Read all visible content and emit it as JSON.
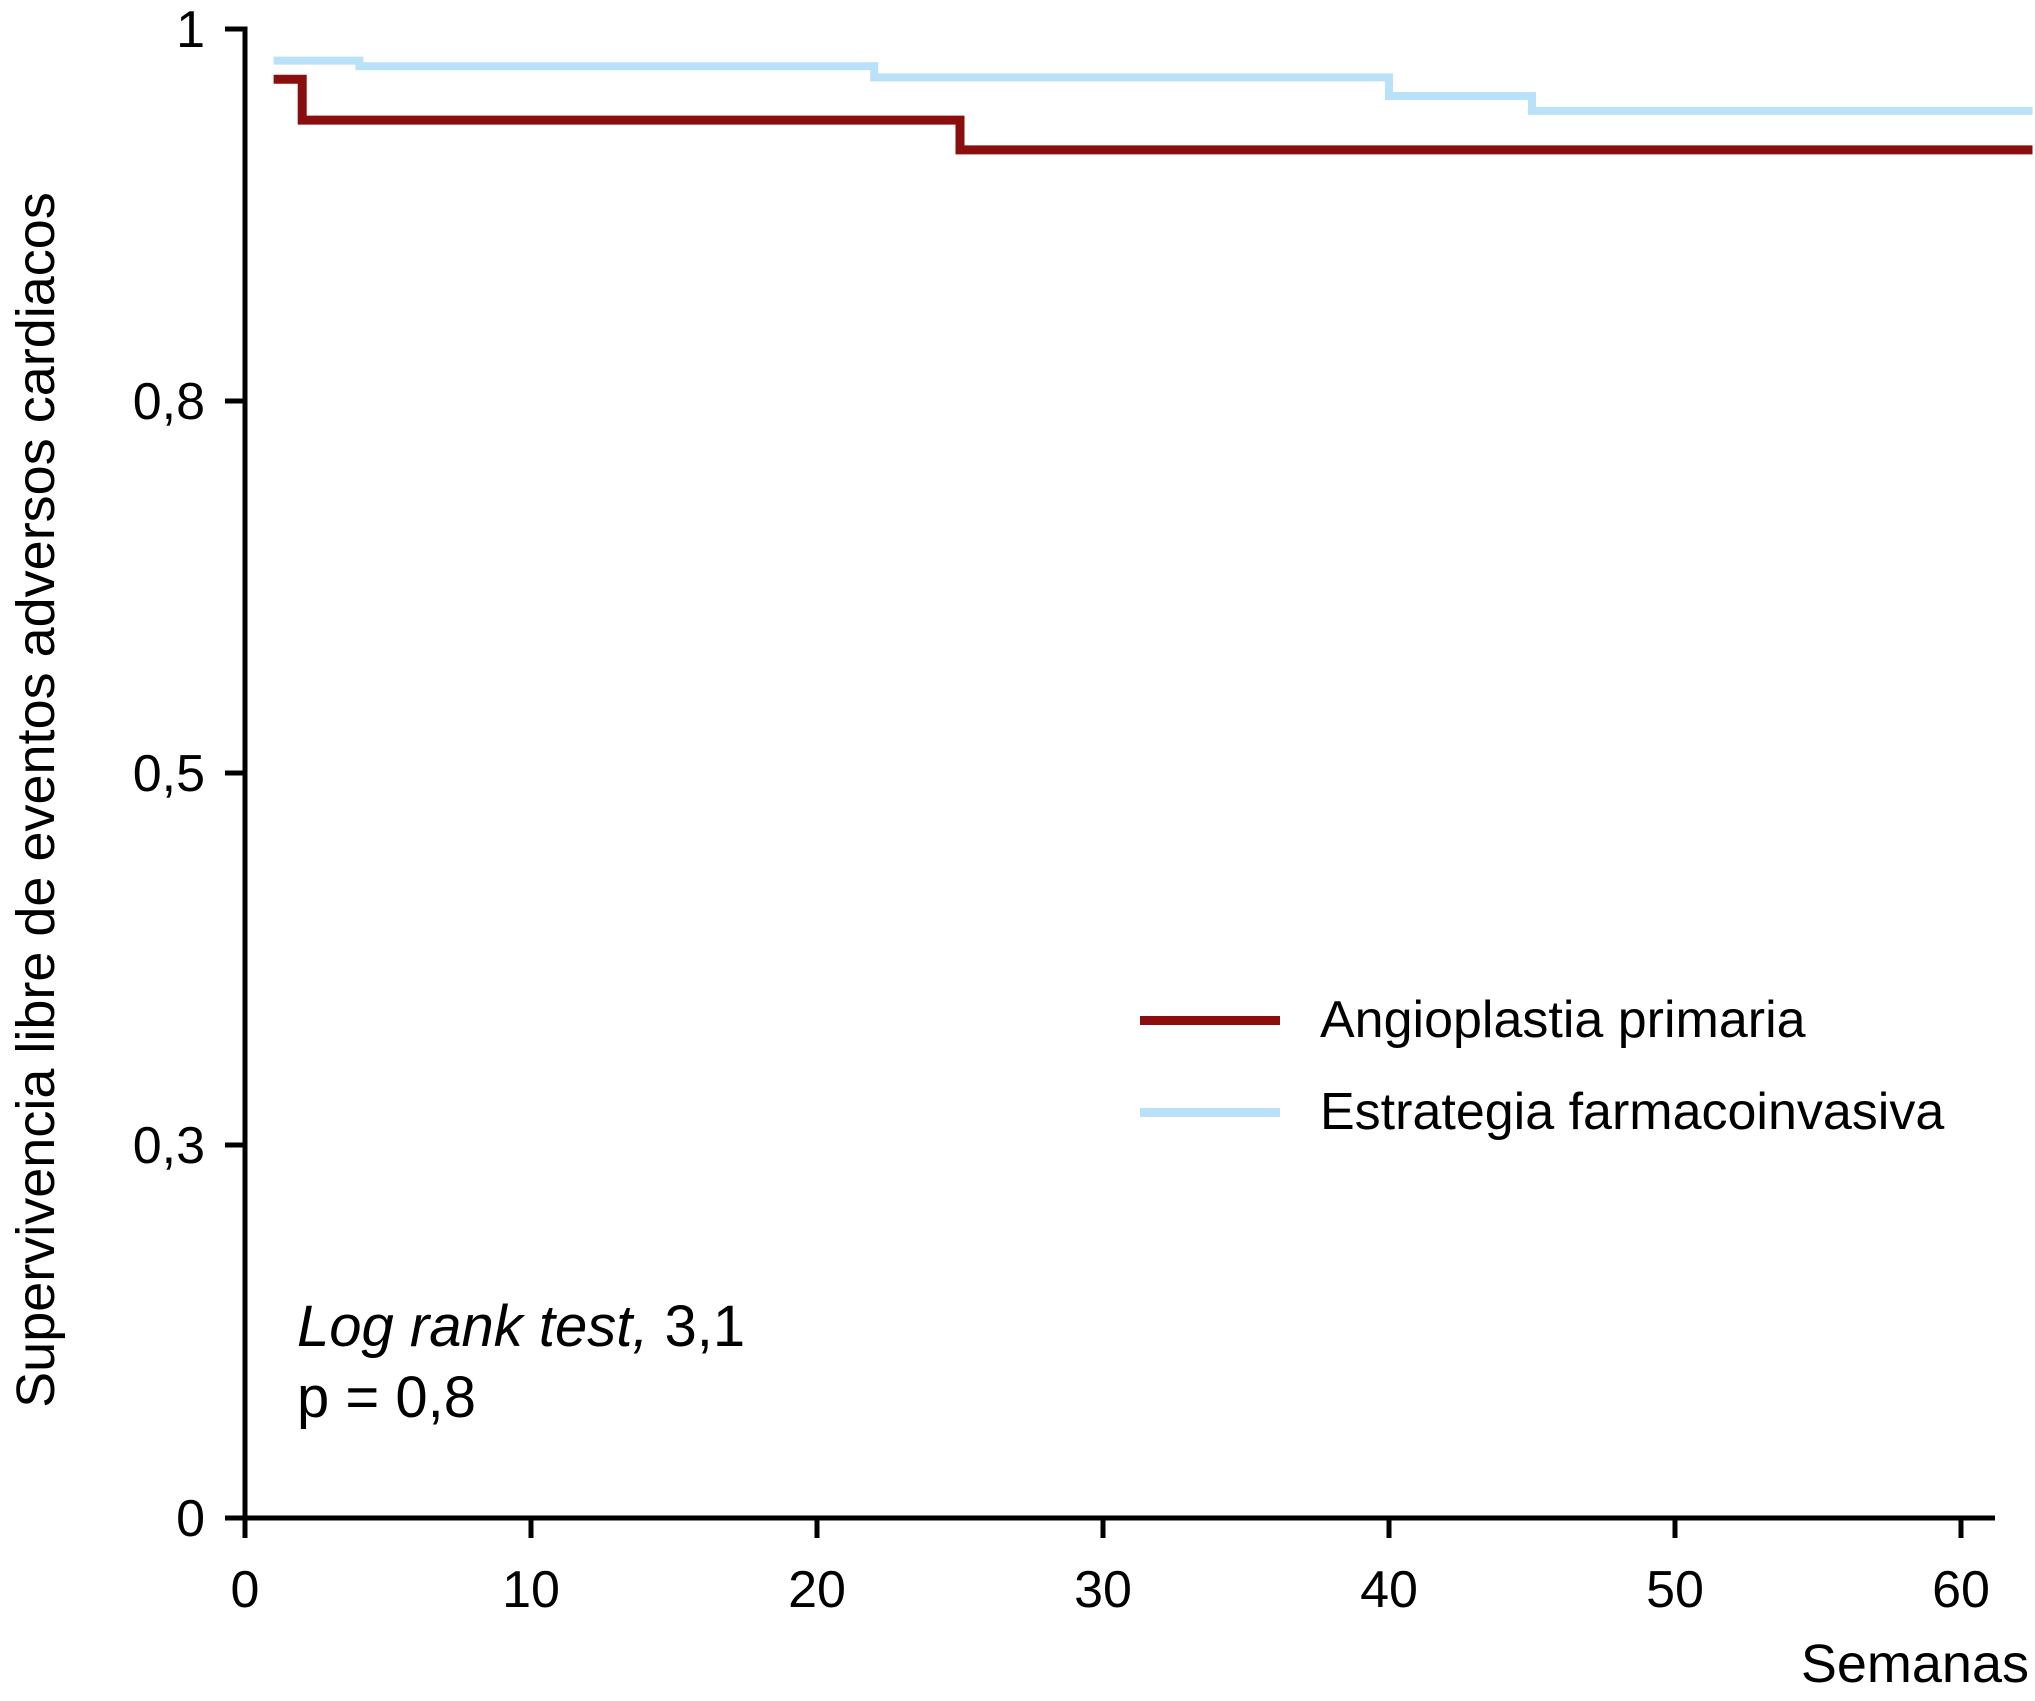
{
  "figure": {
    "background": "#ffffff",
    "axis_color": "#000000",
    "y_axis": {
      "title": "Supervivencia libre de eventos adversos cardiacos",
      "tick_labels": [
        "1",
        "0,8",
        "0,5",
        "0,3",
        "0"
      ],
      "tick_values": [
        1,
        0.8,
        0.5,
        0.3,
        0
      ]
    },
    "x_axis": {
      "title": "Semanas",
      "tick_labels": [
        "0",
        "10",
        "20",
        "30",
        "40",
        "50",
        "60"
      ],
      "tick_values": [
        0,
        10,
        20,
        30,
        40,
        50,
        60
      ]
    },
    "legend": [
      {
        "label": "Angioplastia primaria",
        "color": "#8B0E0E"
      },
      {
        "label": "Estrategia farmacoinvasiva",
        "color": "#B9E1F7"
      }
    ],
    "annotation": {
      "line1_italic": "Log rank test,",
      "line1_value": " 3,1",
      "line2": "p = 0,8"
    }
  },
  "chart_data": {
    "type": "line",
    "subtype": "kaplan-meier-step",
    "title": "",
    "xlabel": "Semanas",
    "ylabel": "Supervivencia libre de eventos adversos cardiacos",
    "x_range": [
      0,
      62.5
    ],
    "x_ticks": [
      0,
      10,
      20,
      30,
      40,
      50,
      60
    ],
    "y_tick_values": [
      1,
      0.8,
      0.5,
      0.3,
      0
    ],
    "y_axis_note": "ticks 1 / 0,8 / 0,5 / 0,3 / 0 are equally spaced (non-linear axis)",
    "grid": false,
    "legend_position": "center-right",
    "step": "after",
    "series": [
      {
        "name": "Angioplastia primaria",
        "color": "#8B0E0E",
        "points": [
          [
            1,
            0.973
          ],
          [
            2,
            0.951
          ],
          [
            25,
            0.935
          ]
        ],
        "end_week": 62.5
      },
      {
        "name": "Estrategia farmacoinvasiva",
        "color": "#B9E1F7",
        "points": [
          [
            1,
            0.983
          ],
          [
            4,
            0.98
          ],
          [
            22,
            0.974
          ],
          [
            40,
            0.964
          ],
          [
            45,
            0.956
          ]
        ],
        "end_week": 62.5
      }
    ],
    "annotations": [
      "Log rank test, 3,1",
      "p = 0,8"
    ]
  }
}
